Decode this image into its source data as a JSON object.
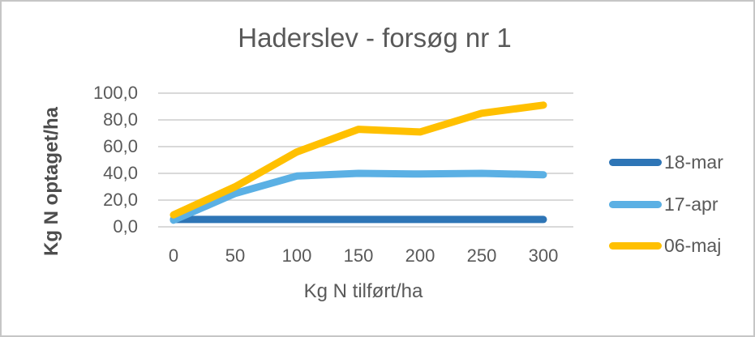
{
  "window": {
    "background": "#FFFFFF",
    "border_color": "#C6C6C6"
  },
  "chart_data": {
    "type": "line",
    "title": "Haderslev - forsøg nr 1",
    "xlabel": "Kg N tilført/ha",
    "ylabel": "Kg N optaget/ha",
    "x": [
      0,
      50,
      100,
      150,
      200,
      250,
      300
    ],
    "xtick_labels": [
      "0",
      "50",
      "100",
      "150",
      "200",
      "250",
      "300"
    ],
    "ytick_labels": [
      "100,0",
      "80,0",
      "60,0",
      "40,0",
      "20,0",
      "0,0"
    ],
    "ytick_values": [
      100,
      80,
      60,
      40,
      20,
      0
    ],
    "ylim": [
      0,
      100
    ],
    "grid": "horizontal",
    "legend_position": "right",
    "series": [
      {
        "name": "18-mar",
        "color": "#2E75B6",
        "values": [
          5.5,
          5.5,
          5.5,
          5.5,
          5.5,
          5.5,
          5.5
        ]
      },
      {
        "name": "17-apr",
        "color": "#5BB0E4",
        "values": [
          5,
          25,
          38,
          40,
          39.5,
          40,
          39
        ]
      },
      {
        "name": "06-maj",
        "color": "#FFC000",
        "values": [
          9,
          30,
          56,
          73,
          71,
          85,
          91
        ]
      }
    ],
    "colors": {
      "text": "#595959",
      "gridline": "#D9D9D9"
    }
  }
}
